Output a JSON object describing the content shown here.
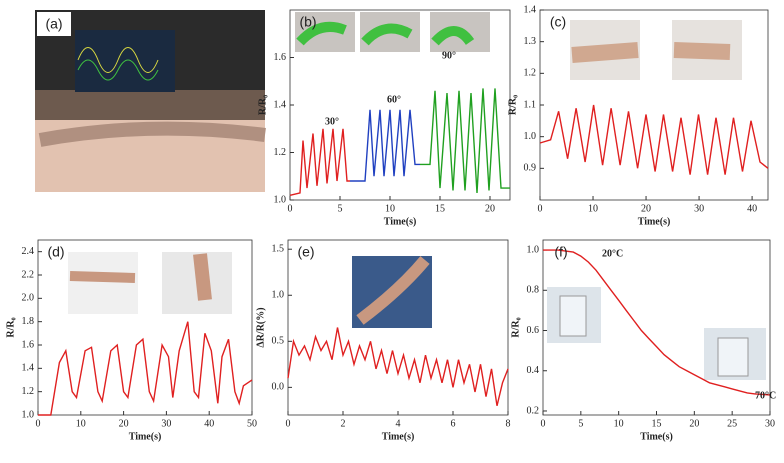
{
  "panel_a": {
    "label": "(a)"
  },
  "chart_data": [
    {
      "type": "line",
      "panel": "(b)",
      "x_label": "Time(s)",
      "y_label": "R/R₀",
      "xlim": [
        0,
        22
      ],
      "ylim": [
        1.0,
        1.8
      ],
      "xticks": [
        0,
        5,
        10,
        15,
        20
      ],
      "yticks": [
        {
          "value": 1.0,
          "label": "1.0"
        },
        1.2,
        1.4,
        1.6
      ],
      "annotations": [
        {
          "text": "30°",
          "color": "#e02020"
        },
        {
          "text": "60°",
          "color": "#2040c0"
        },
        {
          "text": "90°",
          "color": "#20a020"
        }
      ],
      "series": [
        {
          "color": "#e02020",
          "x": [
            0,
            1,
            1.3,
            1.7,
            2.3,
            2.7,
            3.3,
            3.7,
            4.3,
            4.7,
            5.3,
            5.7,
            6
          ],
          "values": [
            1.02,
            1.03,
            1.25,
            1.05,
            1.28,
            1.06,
            1.3,
            1.07,
            1.3,
            1.08,
            1.3,
            1.08,
            1.08
          ]
        },
        {
          "color": "#2040c0",
          "x": [
            6,
            7.5,
            8,
            8.4,
            9,
            9.4,
            10,
            10.4,
            11,
            11.4,
            12,
            12.5,
            13
          ],
          "values": [
            1.08,
            1.08,
            1.38,
            1.1,
            1.38,
            1.1,
            1.38,
            1.1,
            1.38,
            1.1,
            1.38,
            1.15,
            1.15
          ]
        },
        {
          "color": "#20a020",
          "x": [
            13,
            14,
            14.5,
            15,
            15.7,
            16.3,
            16.9,
            17.5,
            18.1,
            18.7,
            19.3,
            19.9,
            20.5,
            21.1,
            21.7,
            22
          ],
          "values": [
            1.15,
            1.15,
            1.46,
            1.05,
            1.45,
            1.04,
            1.46,
            1.04,
            1.45,
            1.03,
            1.47,
            1.04,
            1.47,
            1.05,
            1.05,
            1.05
          ]
        }
      ]
    },
    {
      "type": "line",
      "panel": "(c)",
      "x_label": "Time(s)",
      "y_label": "R/R₀",
      "xlim": [
        0,
        43
      ],
      "ylim": [
        0.8,
        1.4
      ],
      "xticks": [
        0,
        10,
        20,
        30,
        40
      ],
      "yticks": [
        0.9,
        {
          "value": 1.0,
          "label": "1.0"
        },
        1.1,
        1.2,
        1.3,
        1.4
      ],
      "series": [
        {
          "color": "#e02020",
          "x": [
            0,
            2,
            3.5,
            5.2,
            6.8,
            8.5,
            10.1,
            11.8,
            13.4,
            15.1,
            16.7,
            18.4,
            20,
            21.7,
            23.3,
            25,
            26.6,
            28.3,
            29.9,
            31.6,
            33.2,
            34.9,
            36.5,
            38.2,
            39.8,
            41.5,
            43
          ],
          "values": [
            0.98,
            0.99,
            1.08,
            0.93,
            1.09,
            0.92,
            1.1,
            0.91,
            1.09,
            0.91,
            1.08,
            0.9,
            1.07,
            0.89,
            1.07,
            0.89,
            1.06,
            0.88,
            1.07,
            0.88,
            1.06,
            0.88,
            1.06,
            0.89,
            1.05,
            0.92,
            0.9
          ]
        }
      ]
    },
    {
      "type": "line",
      "panel": "(d)",
      "x_label": "Time(s)",
      "y_label": "R/R₀",
      "xlim": [
        0,
        50
      ],
      "ylim": [
        1.0,
        2.5
      ],
      "xticks": [
        0,
        10,
        20,
        30,
        40,
        50
      ],
      "yticks": [
        {
          "value": 1.0,
          "label": "1.0"
        },
        1.2,
        1.4,
        1.6,
        1.8,
        {
          "value": 2.0,
          "label": "2.0"
        },
        2.2,
        2.4
      ],
      "series": [
        {
          "color": "#e02020",
          "x": [
            0,
            3,
            5,
            6.5,
            8,
            9,
            11,
            12.5,
            14,
            15,
            17,
            18.5,
            20,
            21,
            23,
            24.5,
            26,
            27,
            29,
            30.5,
            31.5,
            33,
            35,
            36.5,
            37.5,
            39,
            40.5,
            42,
            43,
            44.5,
            46,
            47,
            48,
            50
          ],
          "values": [
            1.0,
            1.0,
            1.45,
            1.55,
            1.2,
            1.15,
            1.55,
            1.58,
            1.2,
            1.12,
            1.55,
            1.6,
            1.2,
            1.15,
            1.6,
            1.65,
            1.2,
            1.12,
            1.6,
            1.5,
            1.15,
            1.55,
            1.8,
            1.2,
            1.15,
            1.7,
            1.55,
            1.1,
            1.5,
            1.65,
            1.2,
            1.1,
            1.25,
            1.3
          ]
        }
      ]
    },
    {
      "type": "line",
      "panel": "(e)",
      "x_label": "Time(s)",
      "y_label": "ΔR/R(%)",
      "xlim": [
        0,
        8
      ],
      "ylim": [
        -0.3,
        1.6
      ],
      "xticks": [
        0,
        2,
        4,
        6,
        8
      ],
      "yticks": [
        {
          "value": 0.0,
          "label": "0.0"
        },
        0.5,
        {
          "value": 1.0,
          "label": "1.0"
        },
        1.5
      ],
      "series": [
        {
          "color": "#e02020",
          "x": [
            0,
            0.2,
            0.4,
            0.6,
            0.8,
            1.0,
            1.2,
            1.4,
            1.6,
            1.8,
            2.0,
            2.2,
            2.4,
            2.6,
            2.8,
            3.0,
            3.2,
            3.4,
            3.6,
            3.8,
            4.0,
            4.2,
            4.4,
            4.6,
            4.8,
            5.0,
            5.2,
            5.4,
            5.6,
            5.8,
            6.0,
            6.2,
            6.4,
            6.6,
            6.8,
            7.0,
            7.2,
            7.4,
            7.6,
            7.8,
            8.0
          ],
          "values": [
            0.1,
            0.5,
            0.35,
            0.45,
            0.3,
            0.55,
            0.4,
            0.5,
            0.3,
            0.65,
            0.35,
            0.5,
            0.25,
            0.45,
            0.3,
            0.5,
            0.2,
            0.4,
            0.15,
            0.4,
            0.15,
            0.35,
            0.1,
            0.3,
            0.05,
            0.35,
            0.1,
            0.3,
            0.05,
            0.3,
            0.0,
            0.3,
            0.05,
            0.25,
            -0.05,
            0.25,
            -0.1,
            0.2,
            -0.2,
            0.05,
            0.2
          ]
        }
      ]
    },
    {
      "type": "line",
      "panel": "(f)",
      "x_label": "Time(s)",
      "y_label": "R/R₀",
      "xlim": [
        0,
        30
      ],
      "ylim": [
        0.18,
        1.05
      ],
      "xticks": [
        0,
        5,
        10,
        15,
        20,
        25,
        30
      ],
      "yticks": [
        0.2,
        0.4,
        0.6,
        0.8,
        {
          "value": 1.0,
          "label": "1.0"
        }
      ],
      "annotations": [
        {
          "text": "20°C",
          "color": "#000000"
        },
        {
          "text": "70°C",
          "color": "#000000"
        }
      ],
      "series": [
        {
          "color": "#e02020",
          "x": [
            0,
            2,
            4,
            5,
            6,
            7,
            8,
            9,
            10,
            11,
            12,
            13,
            14,
            15,
            16,
            17,
            18,
            19,
            20,
            21,
            22,
            23,
            24,
            25,
            26,
            27,
            28,
            30
          ],
          "values": [
            1.0,
            1.0,
            0.99,
            0.97,
            0.94,
            0.9,
            0.85,
            0.8,
            0.75,
            0.7,
            0.65,
            0.6,
            0.56,
            0.52,
            0.48,
            0.45,
            0.42,
            0.4,
            0.38,
            0.36,
            0.34,
            0.33,
            0.32,
            0.31,
            0.3,
            0.29,
            0.285,
            0.28
          ]
        }
      ]
    }
  ]
}
